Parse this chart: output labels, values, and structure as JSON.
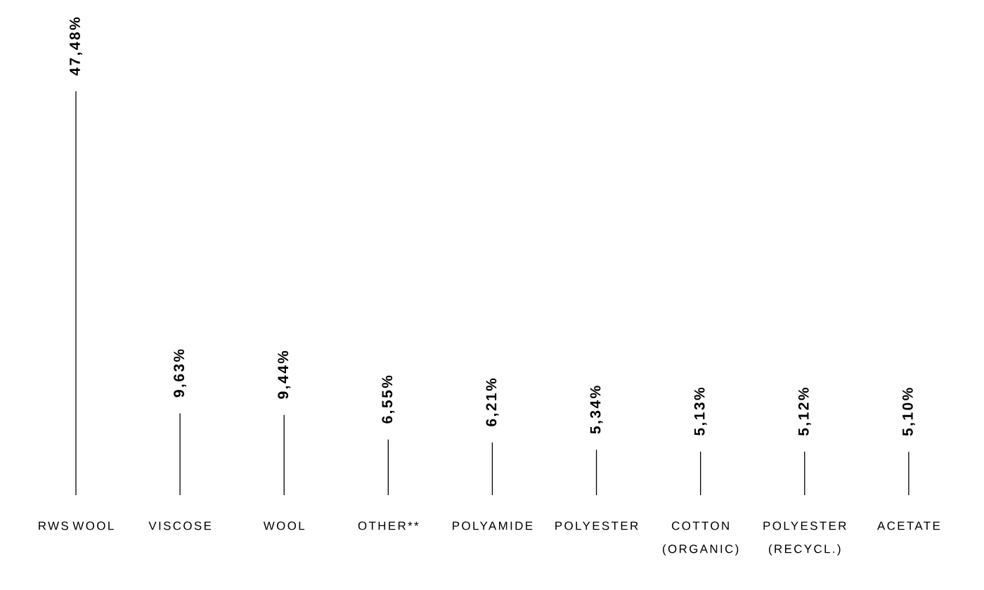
{
  "chart_data": {
    "type": "bar",
    "categories": [
      "RWS WOOL",
      "VISCOSE",
      "WOOL",
      "OTHER**",
      "POLYAMIDE",
      "POLYESTER",
      "COTTON (ORGANIC)",
      "POLYESTER (RECYCL.)",
      "ACETATE"
    ],
    "values": [
      47.48,
      9.63,
      9.44,
      6.55,
      6.21,
      5.34,
      5.13,
      5.12,
      5.1
    ],
    "value_labels": [
      "47,48%",
      "9,63%",
      "9,44%",
      "6,55%",
      "6,21%",
      "5,34%",
      "5,13%",
      "5,12%",
      "5,10%"
    ],
    "color": "#000000"
  }
}
